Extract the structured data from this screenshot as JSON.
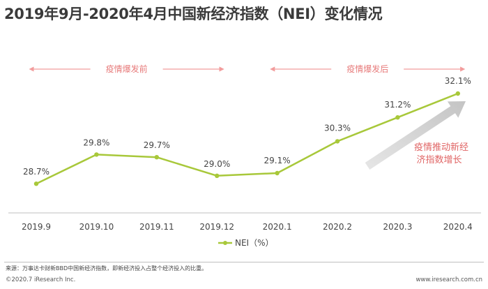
{
  "chart_data": {
    "type": "line",
    "title": "2019年9月-2020年4月中国新经济指数（NEI）变化情况",
    "categories": [
      "2019.9",
      "2019.10",
      "2019.11",
      "2019.12",
      "2020.1",
      "2020.2",
      "2020.3",
      "2020.4"
    ],
    "series": [
      {
        "name": "NEI（%）",
        "values": [
          28.7,
          29.8,
          29.7,
          29.0,
          29.1,
          30.3,
          31.2,
          32.1
        ],
        "color": "#a8c83a"
      }
    ],
    "data_labels": [
      "28.7%",
      "29.8%",
      "29.7%",
      "29.0%",
      "29.1%",
      "30.3%",
      "31.2%",
      "32.1%"
    ],
    "ylim": [
      27.6,
      32.6
    ],
    "grid": false,
    "legend": "bottom",
    "phases": [
      {
        "label": "疫情爆发前",
        "start_index": 0,
        "end_index": 3
      },
      {
        "label": "疫情爆发后",
        "start_index": 4,
        "end_index": 7
      }
    ],
    "annotation": {
      "lines": [
        "疫情推动新经",
        "济指数增长"
      ],
      "arrow_color": "#d0d0d0"
    },
    "phase_color": "#f29c9c"
  },
  "footer": {
    "source": "来源：万事达卡财新BBD中国新经济指数，即新经济投入占整个经济投入的比重。",
    "copyright": "©2020.7 iResearch Inc.",
    "website": "www.iresearch.com.cn"
  }
}
